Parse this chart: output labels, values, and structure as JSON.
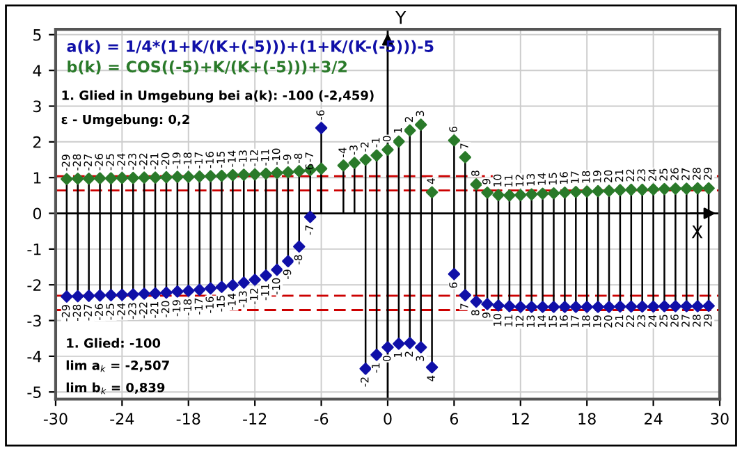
{
  "chart_data": {
    "type": "lollipop",
    "xlabel": "X",
    "ylabel": "Y",
    "x": [
      -29,
      -28,
      -27,
      -26,
      -25,
      -24,
      -23,
      -22,
      -21,
      -20,
      -19,
      -18,
      -17,
      -16,
      -15,
      -14,
      -13,
      -12,
      -11,
      -10,
      -9,
      -8,
      -7,
      -6,
      -5,
      -4,
      -3,
      -2,
      -1,
      0,
      1,
      2,
      3,
      4,
      5,
      6,
      7,
      8,
      9,
      10,
      11,
      12,
      13,
      14,
      15,
      16,
      17,
      18,
      19,
      20,
      21,
      22,
      23,
      24,
      25,
      26,
      27,
      28,
      29
    ],
    "series": [
      {
        "name": "a(k) = 1/4*(1+K/(K+(-5)))+(1+K/(K-(-5)))-5",
        "color": "#1010a8",
        "values": [
          -2.33,
          -2.32,
          -2.31,
          -2.3,
          -2.29,
          -2.28,
          -2.27,
          -2.25,
          -2.24,
          -2.22,
          -2.19,
          -2.17,
          -2.14,
          -2.1,
          -2.06,
          -2.01,
          -1.94,
          -1.86,
          -1.74,
          -1.58,
          -1.34,
          -0.93,
          -0.1,
          2.39,
          null,
          null,
          null,
          -4.35,
          -3.96,
          -3.75,
          -3.65,
          -3.63,
          -3.75,
          -4.31,
          null,
          -1.7,
          -2.29,
          -2.47,
          -2.54,
          -2.58,
          -2.6,
          -2.62,
          -2.62,
          -2.62,
          -2.62,
          -2.62,
          -2.62,
          -2.62,
          -2.62,
          -2.62,
          -2.61,
          -2.61,
          -2.61,
          -2.61,
          -2.6,
          -2.6,
          -2.6,
          -2.6,
          -2.59
        ]
      },
      {
        "name": "b(k) = COS((-5)+K/(K+(-5)))+3/2",
        "color": "#2a7a2a",
        "values": [
          0.96,
          0.97,
          0.97,
          0.98,
          0.98,
          0.99,
          0.99,
          1.0,
          1.0,
          1.01,
          1.02,
          1.02,
          1.03,
          1.04,
          1.05,
          1.07,
          1.08,
          1.09,
          1.11,
          1.13,
          1.15,
          1.18,
          1.21,
          1.25,
          null,
          1.34,
          1.41,
          1.5,
          1.62,
          1.78,
          2.01,
          2.32,
          2.48,
          0.59,
          null,
          2.04,
          1.57,
          0.81,
          0.58,
          0.51,
          0.5,
          0.51,
          0.53,
          0.55,
          0.56,
          0.58,
          0.6,
          0.61,
          0.62,
          0.63,
          0.65,
          0.66,
          0.66,
          0.67,
          0.68,
          0.69,
          0.69,
          0.7,
          0.7
        ]
      }
    ],
    "annotations": [
      "1. Glied: -100",
      "lim a$_{k}$ = -2,507",
      "lim b$_{k}$ = 0,839",
      "1. Glied in Umgebung bei a(k): -100 (-2,459)",
      "ε - Umgebung: 0,2",
      {
        "text": "-29",
        "x": -29,
        "y": -2.33
      },
      {
        "text": "-28",
        "x": -28,
        "y": -2.32
      },
      {
        "text": "-27",
        "x": -27,
        "y": -2.31
      },
      {
        "text": "-26",
        "x": -26,
        "y": -2.3
      },
      {
        "text": "-25",
        "x": -25,
        "y": -2.29
      },
      {
        "text": "-24",
        "x": -24,
        "y": -2.28
      },
      {
        "text": "-23",
        "x": -23,
        "y": -2.27
      },
      {
        "text": "-22",
        "x": -22,
        "y": -2.25
      },
      {
        "text": "-21",
        "x": -21,
        "y": -2.24
      },
      {
        "text": "-20",
        "x": -20,
        "y": -2.22
      },
      {
        "text": "-19",
        "x": -19,
        "y": -2.19
      },
      {
        "text": "-18",
        "x": -18,
        "y": -2.17
      },
      {
        "text": "-17",
        "x": -17,
        "y": -2.14
      },
      {
        "text": "-16",
        "x": -16,
        "y": -2.1
      },
      {
        "text": "-15",
        "x": -15,
        "y": -2.06
      },
      {
        "text": "-14",
        "x": -14,
        "y": -2.01
      },
      {
        "text": "-13",
        "x": -13,
        "y": -1.94
      },
      {
        "text": "-12",
        "x": -12,
        "y": -1.86
      },
      {
        "text": "-11",
        "x": -11,
        "y": -1.74
      },
      {
        "text": "-10",
        "x": -10,
        "y": -1.58
      },
      {
        "text": "-9",
        "x": -9,
        "y": -1.34
      },
      {
        "text": "-8",
        "x": -8,
        "y": -0.93
      },
      {
        "text": "-7",
        "x": -7,
        "y": -0.1
      },
      {
        "text": "-6",
        "x": -6,
        "y": 2.39
      },
      {
        "text": "-2",
        "x": -2,
        "y": -4.35
      },
      {
        "text": "-1",
        "x": -1,
        "y": -3.96
      },
      {
        "text": "0",
        "x": 0,
        "y": -3.75
      },
      {
        "text": "1",
        "x": 1,
        "y": -3.65
      },
      {
        "text": "2",
        "x": 2,
        "y": -3.63
      },
      {
        "text": "3",
        "x": 3,
        "y": -3.75
      },
      {
        "text": "4",
        "x": 4,
        "y": -4.31
      },
      {
        "text": "6",
        "x": 6,
        "y": -1.7
      },
      {
        "text": "7",
        "x": 7,
        "y": -2.29
      },
      {
        "text": "8",
        "x": 8,
        "y": -2.47
      },
      {
        "text": "9",
        "x": 9,
        "y": -2.54
      },
      {
        "text": "10",
        "x": 10,
        "y": -2.58
      },
      {
        "text": "11",
        "x": 11,
        "y": -2.6
      },
      {
        "text": "12",
        "x": 12,
        "y": -2.62
      },
      {
        "text": "13",
        "x": 13,
        "y": -2.62
      },
      {
        "text": "14",
        "x": 14,
        "y": -2.62
      },
      {
        "text": "15",
        "x": 15,
        "y": -2.62
      },
      {
        "text": "16",
        "x": 16,
        "y": -2.62
      },
      {
        "text": "17",
        "x": 17,
        "y": -2.62
      },
      {
        "text": "18",
        "x": 18,
        "y": -2.62
      },
      {
        "text": "19",
        "x": 19,
        "y": -2.62
      },
      {
        "text": "20",
        "x": 20,
        "y": -2.62
      },
      {
        "text": "21",
        "x": 21,
        "y": -2.61
      },
      {
        "text": "22",
        "x": 22,
        "y": -2.61
      },
      {
        "text": "23",
        "x": 23,
        "y": -2.61
      },
      {
        "text": "24",
        "x": 24,
        "y": -2.61
      },
      {
        "text": "25",
        "x": 25,
        "y": -2.6
      },
      {
        "text": "26",
        "x": 26,
        "y": -2.6
      },
      {
        "text": "27",
        "x": 27,
        "y": -2.6
      },
      {
        "text": "28",
        "x": 28,
        "y": -2.6
      },
      {
        "text": "29",
        "x": 29,
        "y": -2.59
      },
      {
        "text": "-29",
        "x": -29,
        "y": 0.96
      },
      {
        "text": "-28",
        "x": -28,
        "y": 0.97
      },
      {
        "text": "-27",
        "x": -27,
        "y": 0.97
      },
      {
        "text": "-26",
        "x": -26,
        "y": 0.98
      },
      {
        "text": "-25",
        "x": -25,
        "y": 0.98
      },
      {
        "text": "-24",
        "x": -24,
        "y": 0.99
      },
      {
        "text": "-23",
        "x": -23,
        "y": 0.99
      },
      {
        "text": "-22",
        "x": -22,
        "y": 1.0
      },
      {
        "text": "-21",
        "x": -21,
        "y": 1.0
      },
      {
        "text": "-20",
        "x": -20,
        "y": 1.01
      },
      {
        "text": "-19",
        "x": -19,
        "y": 1.02
      },
      {
        "text": "-18",
        "x": -18,
        "y": 1.02
      },
      {
        "text": "-17",
        "x": -17,
        "y": 1.03
      },
      {
        "text": "-16",
        "x": -16,
        "y": 1.04
      },
      {
        "text": "-15",
        "x": -15,
        "y": 1.05
      },
      {
        "text": "-14",
        "x": -14,
        "y": 1.07
      },
      {
        "text": "-13",
        "x": -13,
        "y": 1.08
      },
      {
        "text": "-12",
        "x": -12,
        "y": 1.09
      },
      {
        "text": "-11",
        "x": -11,
        "y": 1.11
      },
      {
        "text": "-10",
        "x": -10,
        "y": 1.13
      },
      {
        "text": "-9",
        "x": -9,
        "y": 1.15
      },
      {
        "text": "-8",
        "x": -8,
        "y": 1.18
      },
      {
        "text": "-7",
        "x": -7,
        "y": 1.21
      },
      {
        "text": "-6",
        "x": -6,
        "y": 1.25
      },
      {
        "text": "-4",
        "x": -4,
        "y": 1.34
      },
      {
        "text": "-3",
        "x": -3,
        "y": 1.41
      },
      {
        "text": "-2",
        "x": -2,
        "y": 1.5
      },
      {
        "text": "-1",
        "x": -1,
        "y": 1.62
      },
      {
        "text": "0",
        "x": 0,
        "y": 1.78
      },
      {
        "text": "1",
        "x": 1,
        "y": 2.01
      },
      {
        "text": "2",
        "x": 2,
        "y": 2.32
      },
      {
        "text": "3",
        "x": 3,
        "y": 2.48
      },
      {
        "text": "4",
        "x": 4,
        "y": 0.59
      },
      {
        "text": "6",
        "x": 6,
        "y": 2.04
      },
      {
        "text": "7",
        "x": 7,
        "y": 1.57
      },
      {
        "text": "8",
        "x": 8,
        "y": 0.81
      },
      {
        "text": "9",
        "x": 9,
        "y": 0.58
      },
      {
        "text": "10",
        "x": 10,
        "y": 0.51
      },
      {
        "text": "11",
        "x": 11,
        "y": 0.5
      },
      {
        "text": "12",
        "x": 12,
        "y": 0.51
      },
      {
        "text": "13",
        "x": 13,
        "y": 0.53
      },
      {
        "text": "14",
        "x": 14,
        "y": 0.55
      },
      {
        "text": "15",
        "x": 15,
        "y": 0.56
      },
      {
        "text": "16",
        "x": 16,
        "y": 0.58
      },
      {
        "text": "17",
        "x": 17,
        "y": 0.6
      },
      {
        "text": "18",
        "x": 18,
        "y": 0.61
      },
      {
        "text": "19",
        "x": 19,
        "y": 0.62
      },
      {
        "text": "20",
        "x": 20,
        "y": 0.63
      },
      {
        "text": "21",
        "x": 21,
        "y": 0.65
      },
      {
        "text": "22",
        "x": 22,
        "y": 0.66
      },
      {
        "text": "23",
        "x": 23,
        "y": 0.66
      },
      {
        "text": "24",
        "x": 24,
        "y": 0.67
      },
      {
        "text": "25",
        "x": 25,
        "y": 0.68
      },
      {
        "text": "26",
        "x": 26,
        "y": 0.69
      },
      {
        "text": "27",
        "x": 27,
        "y": 0.69
      },
      {
        "text": "28",
        "x": 28,
        "y": 0.7
      },
      {
        "text": "29",
        "x": 29,
        "y": 0.7
      }
    ],
    "ref_lines": [
      {
        "axis": "y",
        "value": -2.307,
        "color": "#cc0000",
        "line_style": "dashed"
      },
      {
        "axis": "y",
        "value": -2.707,
        "color": "#cc0000",
        "line_style": "dashed"
      },
      {
        "axis": "y",
        "value": 1.039,
        "color": "#cc0000",
        "line_style": "dashed"
      },
      {
        "axis": "y",
        "value": 0.639,
        "color": "#cc0000",
        "line_style": "dashed"
      }
    ],
    "xlim": [
      -30,
      30
    ],
    "ylim": [
      -5.2,
      5.15
    ],
    "xticks": [
      -30,
      -24,
      -18,
      -12,
      -6,
      0,
      6,
      12,
      18,
      24,
      30
    ],
    "yticks": [
      -5,
      -4,
      -3,
      -2,
      -1,
      0,
      1,
      2,
      3,
      4,
      5
    ],
    "grid": true,
    "legend": "top left",
    "marker": "diamond"
  }
}
